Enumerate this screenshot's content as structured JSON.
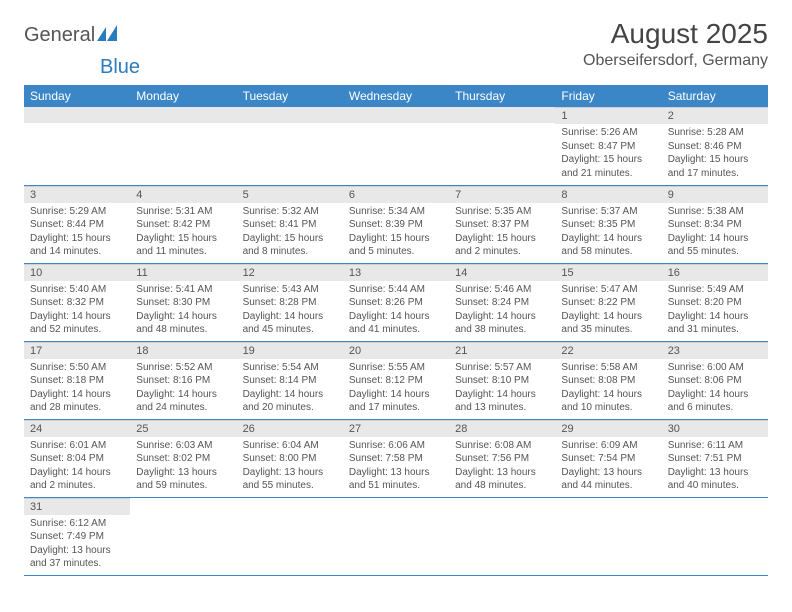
{
  "logo": {
    "left": "General",
    "right": "Blue"
  },
  "title": "August 2025",
  "location": "Oberseifersdorf, Germany",
  "colors": {
    "header_bg": "#3b86c6",
    "divider": "#3b86c6",
    "daynum_bg": "#e8e8e8",
    "text": "#555555"
  },
  "day_headers": [
    "Sunday",
    "Monday",
    "Tuesday",
    "Wednesday",
    "Thursday",
    "Friday",
    "Saturday"
  ],
  "weeks": [
    [
      null,
      null,
      null,
      null,
      null,
      {
        "n": "1",
        "sr": "5:26 AM",
        "ss": "8:47 PM",
        "dl": "15 hours and 21 minutes."
      },
      {
        "n": "2",
        "sr": "5:28 AM",
        "ss": "8:46 PM",
        "dl": "15 hours and 17 minutes."
      }
    ],
    [
      {
        "n": "3",
        "sr": "5:29 AM",
        "ss": "8:44 PM",
        "dl": "15 hours and 14 minutes."
      },
      {
        "n": "4",
        "sr": "5:31 AM",
        "ss": "8:42 PM",
        "dl": "15 hours and 11 minutes."
      },
      {
        "n": "5",
        "sr": "5:32 AM",
        "ss": "8:41 PM",
        "dl": "15 hours and 8 minutes."
      },
      {
        "n": "6",
        "sr": "5:34 AM",
        "ss": "8:39 PM",
        "dl": "15 hours and 5 minutes."
      },
      {
        "n": "7",
        "sr": "5:35 AM",
        "ss": "8:37 PM",
        "dl": "15 hours and 2 minutes."
      },
      {
        "n": "8",
        "sr": "5:37 AM",
        "ss": "8:35 PM",
        "dl": "14 hours and 58 minutes."
      },
      {
        "n": "9",
        "sr": "5:38 AM",
        "ss": "8:34 PM",
        "dl": "14 hours and 55 minutes."
      }
    ],
    [
      {
        "n": "10",
        "sr": "5:40 AM",
        "ss": "8:32 PM",
        "dl": "14 hours and 52 minutes."
      },
      {
        "n": "11",
        "sr": "5:41 AM",
        "ss": "8:30 PM",
        "dl": "14 hours and 48 minutes."
      },
      {
        "n": "12",
        "sr": "5:43 AM",
        "ss": "8:28 PM",
        "dl": "14 hours and 45 minutes."
      },
      {
        "n": "13",
        "sr": "5:44 AM",
        "ss": "8:26 PM",
        "dl": "14 hours and 41 minutes."
      },
      {
        "n": "14",
        "sr": "5:46 AM",
        "ss": "8:24 PM",
        "dl": "14 hours and 38 minutes."
      },
      {
        "n": "15",
        "sr": "5:47 AM",
        "ss": "8:22 PM",
        "dl": "14 hours and 35 minutes."
      },
      {
        "n": "16",
        "sr": "5:49 AM",
        "ss": "8:20 PM",
        "dl": "14 hours and 31 minutes."
      }
    ],
    [
      {
        "n": "17",
        "sr": "5:50 AM",
        "ss": "8:18 PM",
        "dl": "14 hours and 28 minutes."
      },
      {
        "n": "18",
        "sr": "5:52 AM",
        "ss": "8:16 PM",
        "dl": "14 hours and 24 minutes."
      },
      {
        "n": "19",
        "sr": "5:54 AM",
        "ss": "8:14 PM",
        "dl": "14 hours and 20 minutes."
      },
      {
        "n": "20",
        "sr": "5:55 AM",
        "ss": "8:12 PM",
        "dl": "14 hours and 17 minutes."
      },
      {
        "n": "21",
        "sr": "5:57 AM",
        "ss": "8:10 PM",
        "dl": "14 hours and 13 minutes."
      },
      {
        "n": "22",
        "sr": "5:58 AM",
        "ss": "8:08 PM",
        "dl": "14 hours and 10 minutes."
      },
      {
        "n": "23",
        "sr": "6:00 AM",
        "ss": "8:06 PM",
        "dl": "14 hours and 6 minutes."
      }
    ],
    [
      {
        "n": "24",
        "sr": "6:01 AM",
        "ss": "8:04 PM",
        "dl": "14 hours and 2 minutes."
      },
      {
        "n": "25",
        "sr": "6:03 AM",
        "ss": "8:02 PM",
        "dl": "13 hours and 59 minutes."
      },
      {
        "n": "26",
        "sr": "6:04 AM",
        "ss": "8:00 PM",
        "dl": "13 hours and 55 minutes."
      },
      {
        "n": "27",
        "sr": "6:06 AM",
        "ss": "7:58 PM",
        "dl": "13 hours and 51 minutes."
      },
      {
        "n": "28",
        "sr": "6:08 AM",
        "ss": "7:56 PM",
        "dl": "13 hours and 48 minutes."
      },
      {
        "n": "29",
        "sr": "6:09 AM",
        "ss": "7:54 PM",
        "dl": "13 hours and 44 minutes."
      },
      {
        "n": "30",
        "sr": "6:11 AM",
        "ss": "7:51 PM",
        "dl": "13 hours and 40 minutes."
      }
    ],
    [
      {
        "n": "31",
        "sr": "6:12 AM",
        "ss": "7:49 PM",
        "dl": "13 hours and 37 minutes."
      },
      null,
      null,
      null,
      null,
      null,
      null
    ]
  ]
}
